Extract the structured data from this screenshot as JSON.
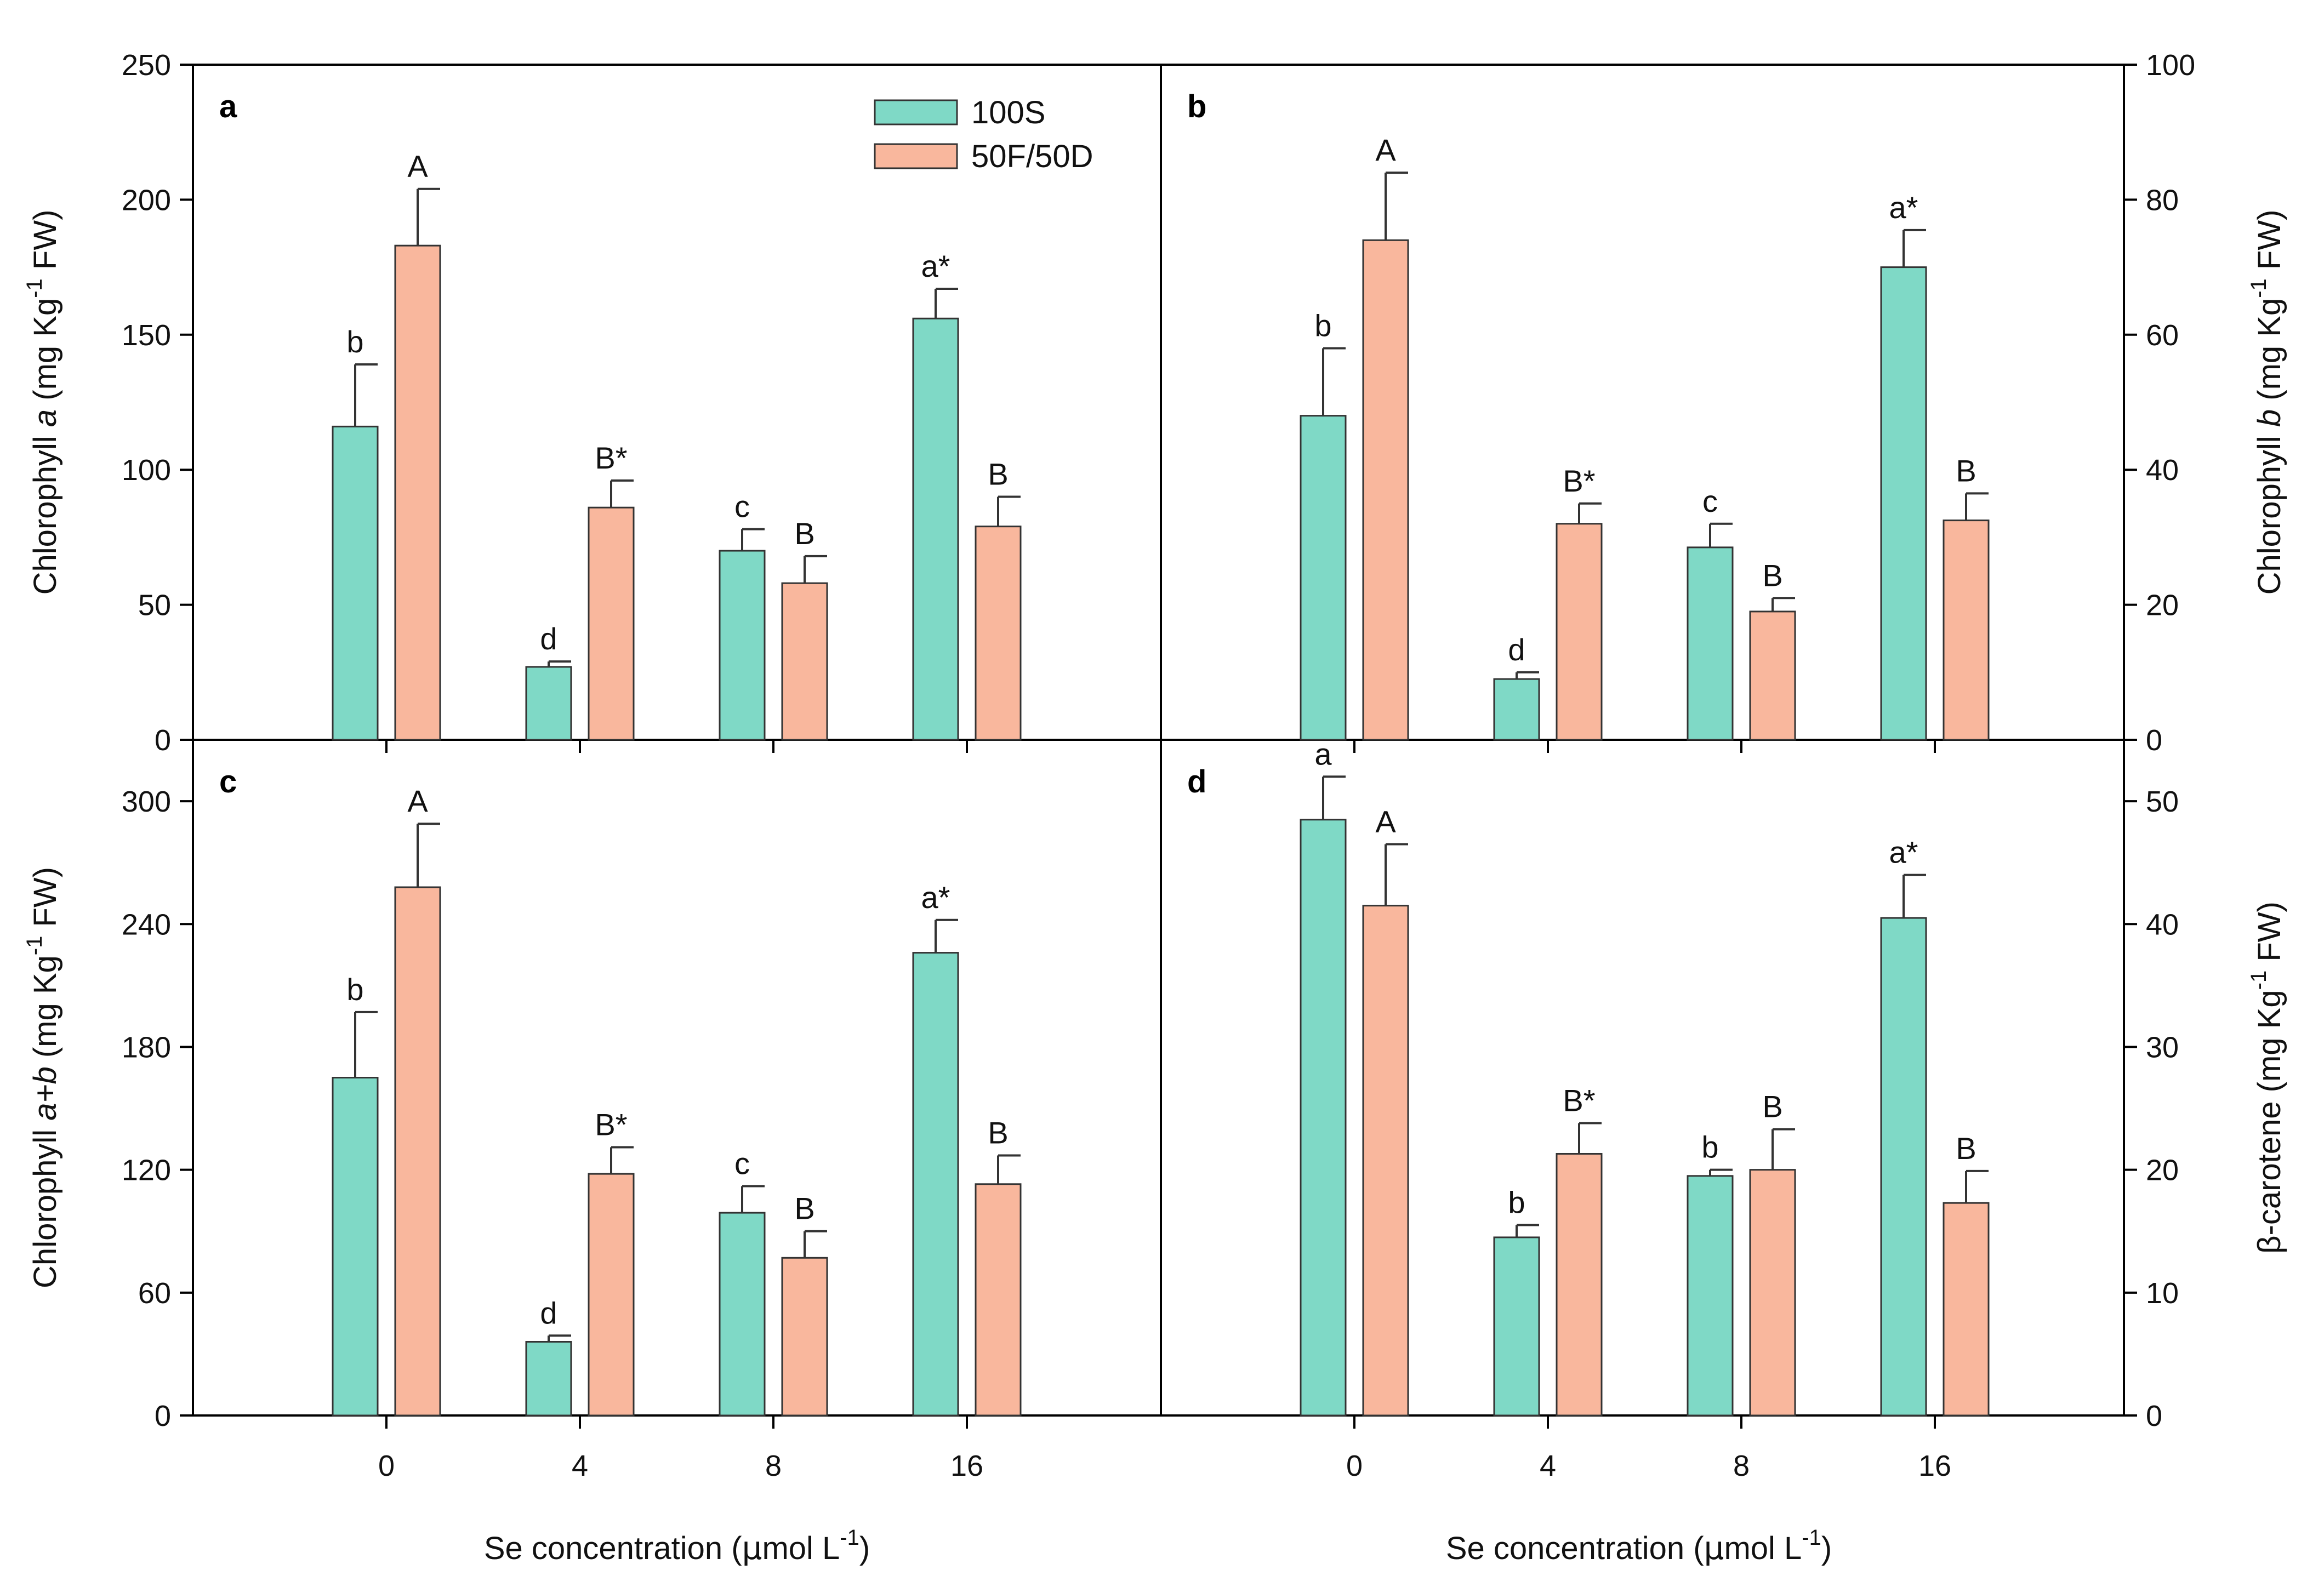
{
  "chart_data": {
    "type": "bar",
    "categories": [
      "0",
      "4",
      "8",
      "16"
    ],
    "xlabel_prefix": "Se concentration (",
    "xlabel_mu": "μ",
    "xlabel_unit": "mol L",
    "xlabel_exp": "-1",
    "xlabel_close": ")",
    "legend": {
      "placement": "top-right of panel a",
      "entries": [
        {
          "name": "100S",
          "color": "#7fd9c6"
        },
        {
          "name": "50F/50D",
          "color": "#f9b79d"
        }
      ]
    },
    "panels": [
      {
        "label": "a",
        "ylabel": {
          "prefix": "Chlorophyll ",
          "italic": "a",
          "unit": " (mg Kg",
          "exp": "-1",
          "tail": " FW)"
        },
        "ylim": [
          0,
          250
        ],
        "yticks": [
          0,
          50,
          100,
          150,
          200,
          250
        ],
        "axis_side": "left",
        "series": [
          {
            "name": "100S",
            "values": [
              116,
              27,
              70,
              156
            ],
            "errors": [
              23,
              2,
              8,
              11
            ],
            "letters": [
              "b",
              "d",
              "c",
              "a*"
            ]
          },
          {
            "name": "50F/50D",
            "values": [
              183,
              86,
              58,
              79
            ],
            "errors": [
              21,
              10,
              10,
              11
            ],
            "letters": [
              "A",
              "B*",
              "B",
              "B"
            ]
          }
        ]
      },
      {
        "label": "b",
        "ylabel": {
          "prefix": "Chlorophyll ",
          "italic": "b",
          "unit": " (mg Kg",
          "exp": "-1",
          "tail": " FW)"
        },
        "ylim": [
          0,
          100
        ],
        "yticks": [
          0,
          20,
          40,
          60,
          80,
          100
        ],
        "axis_side": "right",
        "series": [
          {
            "name": "100S",
            "values": [
              48,
              9,
              28.5,
              70
            ],
            "errors": [
              10,
              1,
              3.5,
              5.5
            ],
            "letters": [
              "b",
              "d",
              "c",
              "a*"
            ]
          },
          {
            "name": "50F/50D",
            "values": [
              74,
              32,
              19,
              32.5
            ],
            "errors": [
              10,
              3,
              2,
              4
            ],
            "letters": [
              "A",
              "B*",
              "B",
              "B"
            ]
          }
        ]
      },
      {
        "label": "c",
        "ylabel": {
          "prefix": "Chlorophyll ",
          "italic": "a+b",
          "unit": " (mg Kg",
          "exp": "-1",
          "tail": " FW)"
        },
        "ylim": [
          0,
          330
        ],
        "yticks": [
          0,
          60,
          120,
          180,
          240,
          300
        ],
        "axis_side": "left",
        "series": [
          {
            "name": "100S",
            "values": [
              165,
              36,
              99,
              226
            ],
            "errors": [
              32,
              3,
              13,
              16
            ],
            "letters": [
              "b",
              "d",
              "c",
              "a*"
            ]
          },
          {
            "name": "50F/50D",
            "values": [
              258,
              118,
              77,
              113
            ],
            "errors": [
              31,
              13,
              13,
              14
            ],
            "letters": [
              "A",
              "B*",
              "B",
              "B"
            ]
          }
        ]
      },
      {
        "label": "d",
        "ylabel": {
          "prefix": "β-carotene",
          "italic": "",
          "unit": " (mg Kg",
          "exp": "-1",
          "tail": " FW)"
        },
        "ylim": [
          0,
          55
        ],
        "yticks": [
          0,
          10,
          20,
          30,
          40,
          50
        ],
        "axis_side": "right",
        "series": [
          {
            "name": "100S",
            "values": [
              48.5,
              14.5,
              19.5,
              40.5
            ],
            "errors": [
              3.5,
              1,
              0.5,
              3.5
            ],
            "letters": [
              "a",
              "b",
              "b",
              "a*"
            ]
          },
          {
            "name": "50F/50D",
            "values": [
              41.5,
              21.3,
              20,
              17.3
            ],
            "errors": [
              5,
              2.5,
              3.3,
              2.6
            ],
            "letters": [
              "A",
              "B*",
              "B",
              "B"
            ]
          }
        ]
      }
    ]
  }
}
